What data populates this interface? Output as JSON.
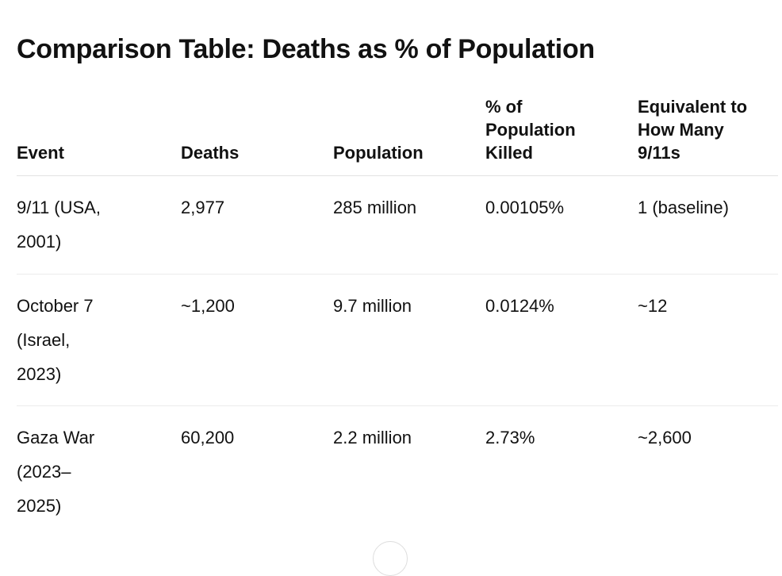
{
  "title": "Comparison Table: Deaths as % of Population",
  "table": {
    "headers": [
      [
        "Event"
      ],
      [
        "Deaths"
      ],
      [
        "Population"
      ],
      [
        "% of",
        "Population",
        "Killed"
      ],
      [
        "Equivalent to",
        "How Many",
        "9/11s"
      ]
    ],
    "rows": [
      [
        [
          "9/11 (USA,",
          "2001)"
        ],
        [
          "2,977"
        ],
        [
          "285 million"
        ],
        [
          "0.00105%"
        ],
        [
          "1 (baseline)"
        ]
      ],
      [
        [
          "October 7",
          "(Israel,",
          "2023)"
        ],
        [
          "~1,200"
        ],
        [
          "9.7 million"
        ],
        [
          "0.0124%"
        ],
        [
          "~12"
        ]
      ],
      [
        [
          "Gaza War",
          "(2023–",
          "2025)"
        ],
        [
          "60,200"
        ],
        [
          "2.2 million"
        ],
        [
          "2.73%"
        ],
        [
          "~2,600"
        ]
      ]
    ]
  }
}
